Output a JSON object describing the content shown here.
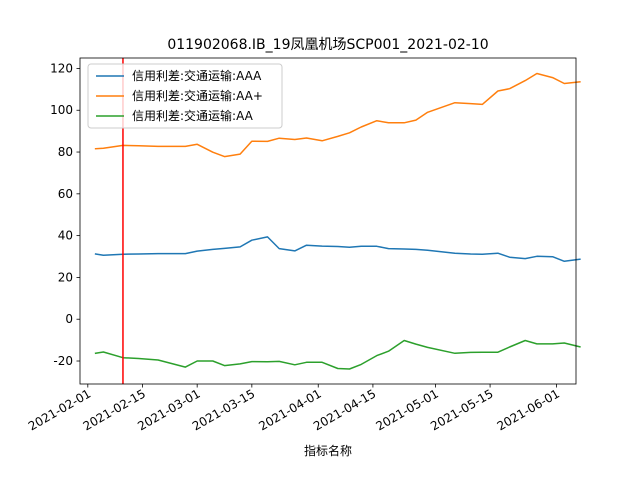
{
  "chart_data": {
    "type": "line",
    "title": "011902068.IB_19凤凰机场SCP001_2021-02-10",
    "xlabel": "指标名称",
    "ylabel": "",
    "x_axis_type": "date",
    "xlim": [
      "2021-01-30",
      "2021-06-06"
    ],
    "ylim": [
      -31,
      125
    ],
    "grid": false,
    "legend_position": "upper left",
    "x_tick_labels": [
      "2021-02-01",
      "2021-02-15",
      "2021-03-01",
      "2021-03-15",
      "2021-04-01",
      "2021-04-15",
      "2021-05-01",
      "2021-05-15",
      "2021-06-01"
    ],
    "y_ticks": [
      -20,
      0,
      20,
      40,
      60,
      80,
      100,
      120
    ],
    "vertical_marker": {
      "x": "2021-02-10",
      "color": "#ff0000"
    },
    "series": [
      {
        "name": "信用利差:交通运输:AAA",
        "color": "#1f77b4",
        "points": [
          [
            "2021-02-03",
            31.2
          ],
          [
            "2021-02-05",
            30.6
          ],
          [
            "2021-02-10",
            31.1
          ],
          [
            "2021-02-14",
            31.2
          ],
          [
            "2021-02-19",
            31.4
          ],
          [
            "2021-02-26",
            31.4
          ],
          [
            "2021-03-01",
            32.6
          ],
          [
            "2021-03-05",
            33.4
          ],
          [
            "2021-03-08",
            33.9
          ],
          [
            "2021-03-12",
            34.6
          ],
          [
            "2021-03-15",
            37.8
          ],
          [
            "2021-03-19",
            39.4
          ],
          [
            "2021-03-22",
            33.8
          ],
          [
            "2021-03-26",
            32.7
          ],
          [
            "2021-03-29",
            35.4
          ],
          [
            "2021-04-02",
            35.0
          ],
          [
            "2021-04-06",
            34.8
          ],
          [
            "2021-04-09",
            34.4
          ],
          [
            "2021-04-12",
            34.9
          ],
          [
            "2021-04-16",
            34.9
          ],
          [
            "2021-04-19",
            33.8
          ],
          [
            "2021-04-23",
            33.6
          ],
          [
            "2021-04-26",
            33.4
          ],
          [
            "2021-04-29",
            33.0
          ],
          [
            "2021-05-06",
            31.6
          ],
          [
            "2021-05-10",
            31.2
          ],
          [
            "2021-05-13",
            31.1
          ],
          [
            "2021-05-17",
            31.6
          ],
          [
            "2021-05-20",
            29.7
          ],
          [
            "2021-05-24",
            29.0
          ],
          [
            "2021-05-27",
            30.1
          ],
          [
            "2021-05-31",
            29.9
          ],
          [
            "2021-06-03",
            27.7
          ],
          [
            "2021-06-07",
            28.7
          ]
        ]
      },
      {
        "name": "信用利差:交通运输:AA+",
        "color": "#ff7f0e",
        "points": [
          [
            "2021-02-03",
            81.6
          ],
          [
            "2021-02-05",
            81.8
          ],
          [
            "2021-02-10",
            83.2
          ],
          [
            "2021-02-14",
            83.0
          ],
          [
            "2021-02-19",
            82.7
          ],
          [
            "2021-02-26",
            82.7
          ],
          [
            "2021-03-01",
            83.7
          ],
          [
            "2021-03-05",
            79.9
          ],
          [
            "2021-03-08",
            77.8
          ],
          [
            "2021-03-12",
            79.0
          ],
          [
            "2021-03-15",
            85.2
          ],
          [
            "2021-03-19",
            85.1
          ],
          [
            "2021-03-22",
            86.6
          ],
          [
            "2021-03-26",
            86.0
          ],
          [
            "2021-03-29",
            86.7
          ],
          [
            "2021-04-02",
            85.4
          ],
          [
            "2021-04-06",
            87.5
          ],
          [
            "2021-04-09",
            89.2
          ],
          [
            "2021-04-12",
            92.0
          ],
          [
            "2021-04-16",
            95.0
          ],
          [
            "2021-04-19",
            94.0
          ],
          [
            "2021-04-23",
            94.0
          ],
          [
            "2021-04-26",
            95.3
          ],
          [
            "2021-04-29",
            99.0
          ],
          [
            "2021-05-06",
            103.6
          ],
          [
            "2021-05-10",
            103.2
          ],
          [
            "2021-05-13",
            102.8
          ],
          [
            "2021-05-17",
            109.2
          ],
          [
            "2021-05-20",
            110.3
          ],
          [
            "2021-05-24",
            114.2
          ],
          [
            "2021-05-27",
            117.6
          ],
          [
            "2021-05-31",
            115.6
          ],
          [
            "2021-06-03",
            112.8
          ],
          [
            "2021-06-07",
            113.6
          ]
        ]
      },
      {
        "name": "信用利差:交通运输:AA",
        "color": "#2ca02c",
        "points": [
          [
            "2021-02-03",
            -16.3
          ],
          [
            "2021-02-05",
            -15.7
          ],
          [
            "2021-02-10",
            -18.4
          ],
          [
            "2021-02-14",
            -18.8
          ],
          [
            "2021-02-19",
            -19.5
          ],
          [
            "2021-02-26",
            -22.9
          ],
          [
            "2021-03-01",
            -20.0
          ],
          [
            "2021-03-05",
            -20.0
          ],
          [
            "2021-03-08",
            -22.2
          ],
          [
            "2021-03-12",
            -21.4
          ],
          [
            "2021-03-15",
            -20.3
          ],
          [
            "2021-03-19",
            -20.4
          ],
          [
            "2021-03-22",
            -20.2
          ],
          [
            "2021-03-26",
            -21.8
          ],
          [
            "2021-03-29",
            -20.6
          ],
          [
            "2021-04-02",
            -20.6
          ],
          [
            "2021-04-06",
            -23.6
          ],
          [
            "2021-04-09",
            -23.8
          ],
          [
            "2021-04-12",
            -21.6
          ],
          [
            "2021-04-16",
            -17.4
          ],
          [
            "2021-04-19",
            -15.3
          ],
          [
            "2021-04-23",
            -10.2
          ],
          [
            "2021-04-26",
            -11.9
          ],
          [
            "2021-04-29",
            -13.5
          ],
          [
            "2021-05-06",
            -16.3
          ],
          [
            "2021-05-10",
            -15.9
          ],
          [
            "2021-05-13",
            -15.8
          ],
          [
            "2021-05-17",
            -15.8
          ],
          [
            "2021-05-20",
            -13.3
          ],
          [
            "2021-05-24",
            -10.2
          ],
          [
            "2021-05-27",
            -11.8
          ],
          [
            "2021-05-31",
            -11.8
          ],
          [
            "2021-06-03",
            -11.4
          ],
          [
            "2021-06-07",
            -13.2
          ]
        ]
      }
    ]
  }
}
